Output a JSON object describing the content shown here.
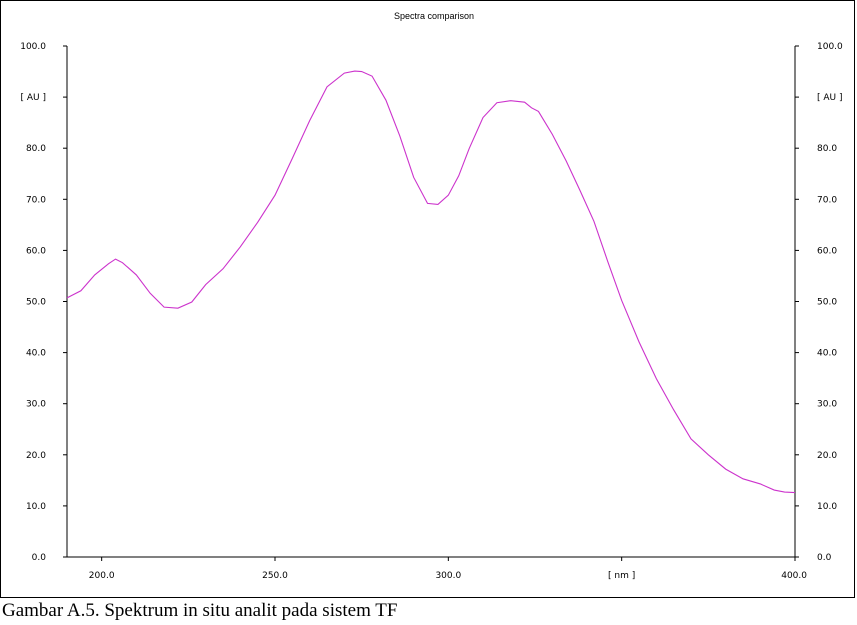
{
  "caption": "Gambar A.5. Spektrum in situ analit pada sistem TF",
  "chart_data": {
    "type": "line",
    "title": "Spectra comparison",
    "xlabel": "[ nm ]",
    "ylabel": "[ AU ]",
    "xlim": [
      190,
      400
    ],
    "ylim": [
      0,
      100
    ],
    "x_ticks": [
      "200.0",
      "250.0",
      "300.0",
      "[ nm ]",
      "400.0"
    ],
    "x_tick_values": [
      200,
      250,
      300,
      350,
      400
    ],
    "y_ticks": [
      "0.0",
      "10.0",
      "20.0",
      "30.0",
      "40.0",
      "50.0",
      "60.0",
      "70.0",
      "80.0",
      "[ AU ]",
      "100.0"
    ],
    "y_tick_values": [
      0,
      10,
      20,
      30,
      40,
      50,
      60,
      70,
      80,
      90,
      100
    ],
    "grid": false,
    "line_color": "#cc33cc",
    "series": [
      {
        "x": [
          190,
          194,
          198,
          202,
          204,
          206,
          210,
          214,
          218,
          222,
          226,
          230,
          235,
          240,
          245,
          250,
          255,
          260,
          265,
          270,
          273,
          275,
          278,
          282,
          286,
          290,
          294,
          297,
          300,
          303,
          306,
          310,
          314,
          318,
          322,
          324,
          326,
          330,
          334,
          338,
          342,
          346,
          350,
          355,
          360,
          365,
          370,
          375,
          380,
          385,
          390,
          394,
          397,
          400
        ],
        "y": [
          50.7,
          52.1,
          55.2,
          57.4,
          58.3,
          57.6,
          55.2,
          51.6,
          48.9,
          48.7,
          49.9,
          53.3,
          56.4,
          60.7,
          65.5,
          70.8,
          78.0,
          85.4,
          92.0,
          94.7,
          95.1,
          95.0,
          94.1,
          89.4,
          82.4,
          74.3,
          69.2,
          69.0,
          70.8,
          74.6,
          79.9,
          86.0,
          88.9,
          89.3,
          89.0,
          87.9,
          87.2,
          82.7,
          77.5,
          71.7,
          65.7,
          57.8,
          50.2,
          42.1,
          34.9,
          28.8,
          23.1,
          20.0,
          17.2,
          15.3,
          14.3,
          13.1,
          12.7,
          12.6
        ]
      }
    ]
  }
}
